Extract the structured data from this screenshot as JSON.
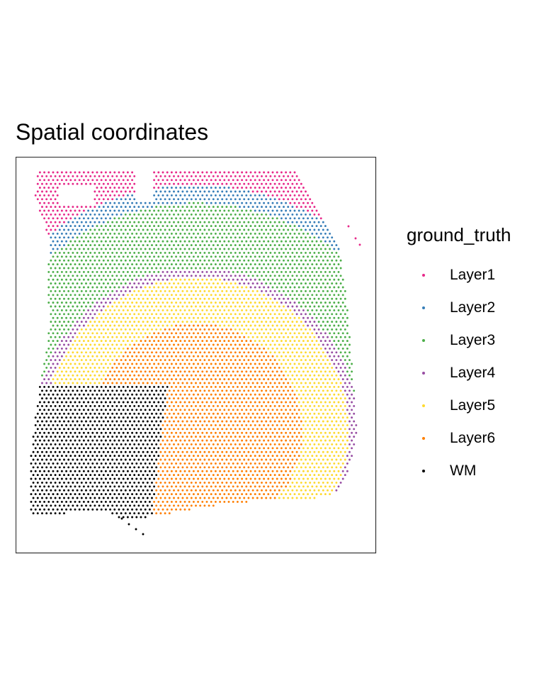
{
  "chart_data": {
    "type": "scatter",
    "title": "Spatial coordinates",
    "xlabel": "",
    "ylabel": "",
    "axes_visible": false,
    "grid": false,
    "panel_border": true,
    "legend_position": "right",
    "legend": {
      "title": "ground_truth",
      "entries": [
        {
          "label": "Layer1",
          "color": "#E7298A"
        },
        {
          "label": "Layer2",
          "color": "#377EB8"
        },
        {
          "label": "Layer3",
          "color": "#4DAF4A"
        },
        {
          "label": "Layer4",
          "color": "#984EA3"
        },
        {
          "label": "Layer5",
          "color": "#FFD92F"
        },
        {
          "label": "Layer6",
          "color": "#FF7F00"
        },
        {
          "label": "WM",
          "color": "#000000"
        }
      ]
    }
  }
}
